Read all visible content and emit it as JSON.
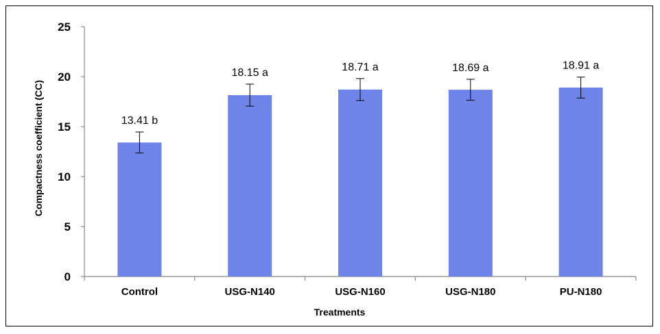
{
  "chart_data": {
    "type": "bar",
    "title": "",
    "xlabel": "Treatments",
    "ylabel": "Compactness coefficient  (CC)",
    "categories": [
      "Control",
      "USG-N140",
      "USG-N160",
      "USG-N180",
      "PU-N180"
    ],
    "values": [
      13.41,
      18.15,
      18.71,
      18.69,
      18.91
    ],
    "errors": [
      1.05,
      1.1,
      1.1,
      1.05,
      1.05
    ],
    "data_labels": [
      "13.41 b",
      "18.15 a",
      "18.71 a",
      "18.69 a",
      "18.91 a"
    ],
    "ylim": [
      0,
      25
    ],
    "yticks": [
      0,
      5,
      10,
      15,
      20,
      25
    ],
    "grid": false,
    "legend": "none",
    "bar_color": "#6e84e8"
  }
}
